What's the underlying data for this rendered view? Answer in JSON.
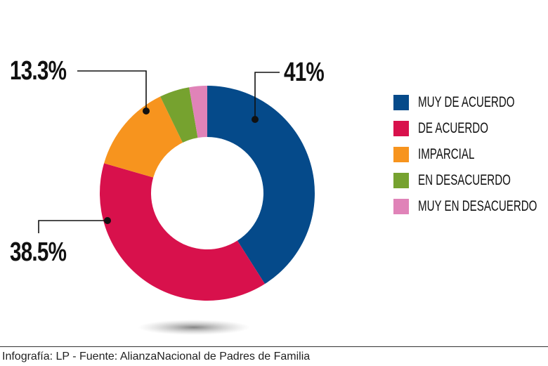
{
  "chart_data": {
    "type": "pie",
    "donut": true,
    "categories": [
      "MUY DE ACUERDO",
      "DE ACUERDO",
      "IMPARCIAL",
      "EN DESACUERDO",
      "MUY EN DESACUERDO"
    ],
    "values": [
      41,
      38.5,
      13.3,
      4.5,
      2.7
    ],
    "colors": [
      "#054a8a",
      "#d8114c",
      "#f7941e",
      "#76a22f",
      "#e083b8"
    ],
    "data_labels": {
      "muy_de_acuerdo": "41%",
      "de_acuerdo": "38.5%",
      "imparcial": "13.3%"
    },
    "legend_position": "right"
  },
  "footer": "Infografía: LP - Fuente: AlianzaNacional de Padres de Familia"
}
